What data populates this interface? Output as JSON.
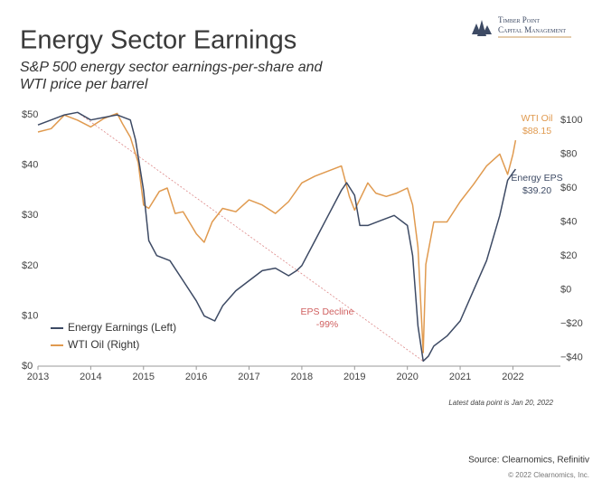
{
  "logo": {
    "line1": "Timber Point",
    "line2": "Capital Management"
  },
  "chart_data": {
    "type": "line",
    "title": "Energy Sector Earnings",
    "subtitle": [
      "S&P 500 energy sector earnings-per-share and",
      "WTI price per barrel"
    ],
    "xlim": [
      2013,
      2022.9
    ],
    "xticks": [
      2013,
      2014,
      2015,
      2016,
      2017,
      2018,
      2019,
      2020,
      2021,
      2022
    ],
    "ylim": [
      0,
      52
    ],
    "yticks": [
      {
        "value": 0,
        "label": "$0"
      },
      {
        "value": 10,
        "label": "$10"
      },
      {
        "value": 20,
        "label": "$20"
      },
      {
        "value": 30,
        "label": "$30"
      },
      {
        "value": 40,
        "label": "$40"
      },
      {
        "value": 50,
        "label": "$50"
      }
    ],
    "y2lim": [
      -45,
      109
    ],
    "y2ticks": [
      {
        "value": -40,
        "label": "−$40"
      },
      {
        "value": -20,
        "label": "−$20"
      },
      {
        "value": 0,
        "label": "$0"
      },
      {
        "value": 20,
        "label": "$20"
      },
      {
        "value": 40,
        "label": "$40"
      },
      {
        "value": 60,
        "label": "$60"
      },
      {
        "value": 80,
        "label": "$80"
      },
      {
        "value": 100,
        "label": "$100"
      }
    ],
    "legend": "lower left",
    "series": [
      {
        "name": "Energy Earnings (Left)",
        "color": "#3d4a64",
        "x": [
          2013.0,
          2013.25,
          2013.5,
          2013.75,
          2014.0,
          2014.25,
          2014.5,
          2014.75,
          2014.85,
          2015.0,
          2015.1,
          2015.25,
          2015.5,
          2015.75,
          2016.0,
          2016.15,
          2016.35,
          2016.5,
          2016.75,
          2017.0,
          2017.25,
          2017.5,
          2017.75,
          2017.9,
          2018.0,
          2018.25,
          2018.5,
          2018.75,
          2018.85,
          2019.0,
          2019.1,
          2019.25,
          2019.5,
          2019.75,
          2020.0,
          2020.1,
          2020.2,
          2020.3,
          2020.4,
          2020.5,
          2020.75,
          2021.0,
          2021.25,
          2021.5,
          2021.75,
          2021.9,
          2022.0,
          2022.05
        ],
        "values": [
          48,
          49,
          50,
          50.5,
          49,
          49.5,
          50,
          49,
          45,
          35,
          25,
          22,
          21,
          17,
          13,
          10,
          9,
          12,
          15,
          17,
          19,
          19.5,
          18,
          19,
          20,
          25,
          30,
          35,
          36.5,
          34,
          28,
          28,
          29,
          30,
          28,
          22,
          8,
          1,
          2,
          4,
          6,
          9,
          15,
          21,
          30,
          37,
          38.5,
          39.2
        ]
      },
      {
        "name": "WTI Oil (Right)",
        "color": "#e09a4f",
        "axis": "y2",
        "x": [
          2013.0,
          2013.25,
          2013.5,
          2013.75,
          2014.0,
          2014.25,
          2014.5,
          2014.6,
          2014.75,
          2014.9,
          2015.0,
          2015.1,
          2015.3,
          2015.45,
          2015.6,
          2015.75,
          2016.0,
          2016.15,
          2016.3,
          2016.5,
          2016.75,
          2017.0,
          2017.25,
          2017.5,
          2017.75,
          2018.0,
          2018.25,
          2018.5,
          2018.75,
          2018.9,
          2019.0,
          2019.25,
          2019.4,
          2019.6,
          2019.8,
          2020.0,
          2020.1,
          2020.2,
          2020.3,
          2020.35,
          2020.5,
          2020.75,
          2021.0,
          2021.25,
          2021.5,
          2021.75,
          2021.9,
          2022.0,
          2022.05
        ],
        "values": [
          93,
          95,
          103,
          100,
          96,
          101,
          104,
          98,
          90,
          75,
          50,
          48,
          58,
          60,
          45,
          46,
          33,
          28,
          40,
          48,
          46,
          53,
          50,
          45,
          52,
          63,
          67,
          70,
          73,
          55,
          47,
          63,
          57,
          55,
          57,
          60,
          50,
          25,
          -37,
          15,
          40,
          40,
          52,
          62,
          73,
          80,
          68,
          80,
          88.15
        ]
      }
    ],
    "annotations": [
      {
        "text": "WTI Oil",
        "text2": "$88.15"
      },
      {
        "text": "Energy EPS",
        "text2": "$39.20"
      },
      {
        "text": "EPS Decline",
        "text2": "-99%"
      }
    ],
    "note": "Latest data point is Jan 20, 2022",
    "source": "Source: Clearnomics, Refinitiv",
    "copyright": "© 2022 Clearnomics, Inc."
  }
}
